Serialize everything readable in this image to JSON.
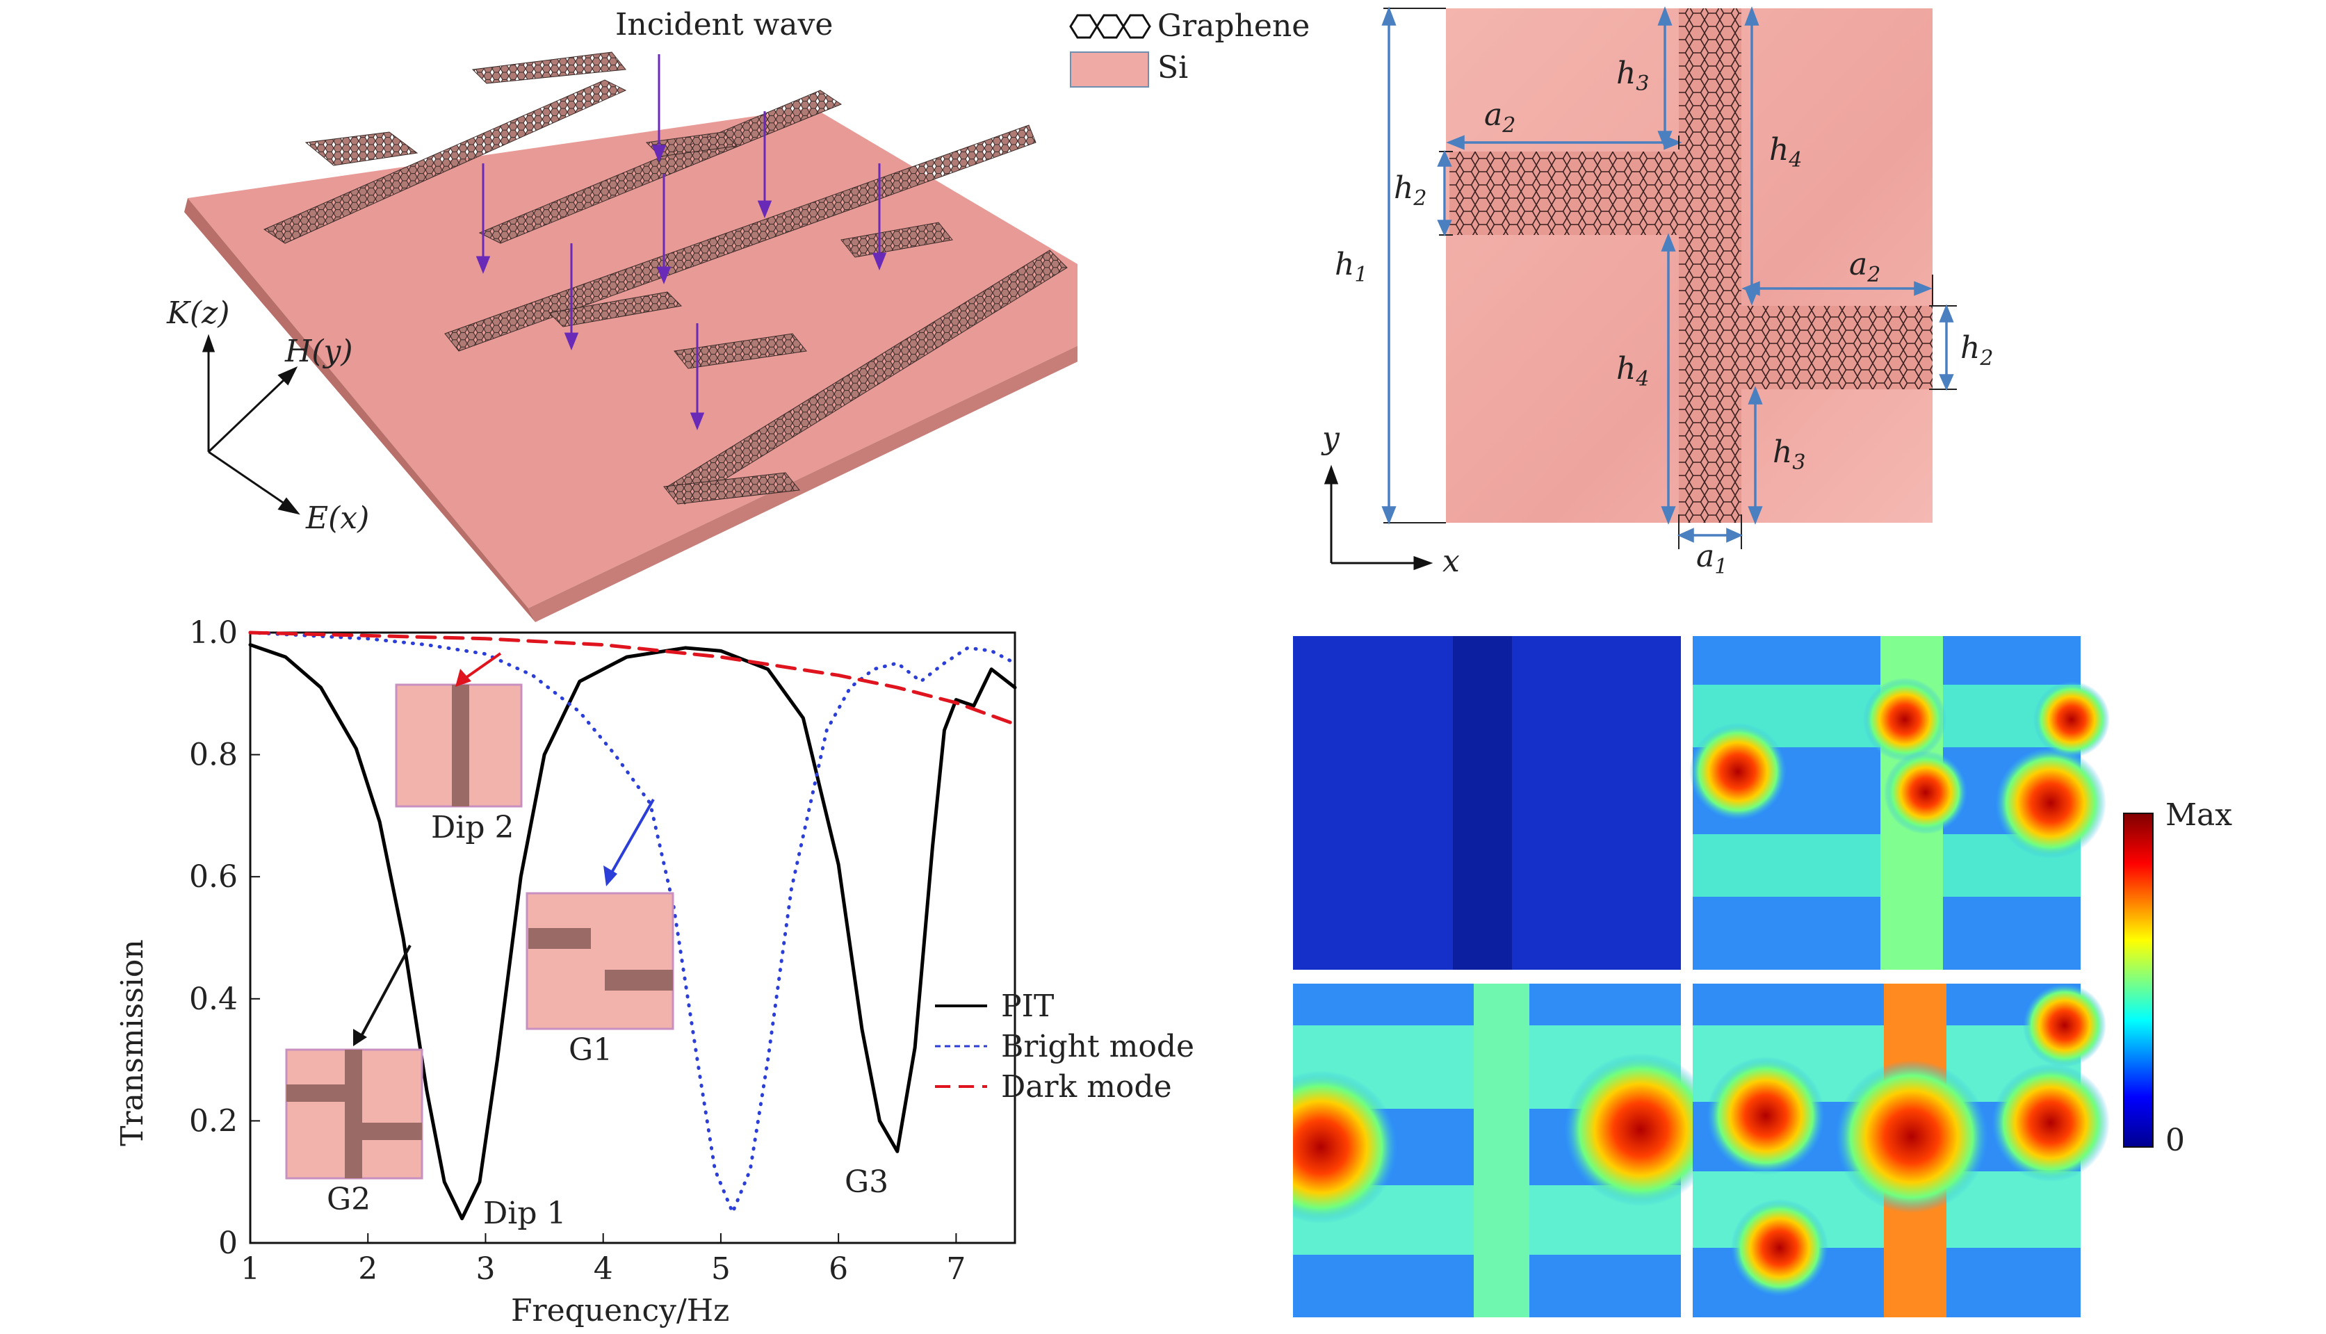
{
  "panel_a": {
    "incident_label": "Incident wave",
    "axis_k": "K(z)",
    "axis_h": "H(y)",
    "axis_e": "E(x)"
  },
  "legend_top": {
    "graphene": "Graphene",
    "si": "Si"
  },
  "panel_b": {
    "h1": "h",
    "h1_sub": "1",
    "h2": "h",
    "h2_sub": "2",
    "h3": "h",
    "h3_sub": "3",
    "h4": "h",
    "h4_sub": "4",
    "a1": "a",
    "a1_sub": "1",
    "a2": "a",
    "a2_sub": "2",
    "axis_x": "x",
    "axis_y": "y"
  },
  "chart_data": {
    "type": "line",
    "xlabel": "Frequency/Hz",
    "ylabel": "Transmission",
    "xlim": [
      1,
      7.5
    ],
    "ylim": [
      0,
      1.0
    ],
    "xticks": [
      "1",
      "2",
      "3",
      "4",
      "5",
      "6",
      "7"
    ],
    "yticks": [
      "0",
      "0.2",
      "0.4",
      "0.6",
      "0.8",
      "1.0"
    ],
    "series": [
      {
        "name": "PIT",
        "color": "#000000",
        "style": "solid",
        "x": [
          1.0,
          1.3,
          1.6,
          1.9,
          2.1,
          2.3,
          2.5,
          2.65,
          2.8,
          2.95,
          3.1,
          3.3,
          3.5,
          3.8,
          4.2,
          4.7,
          5.0,
          5.4,
          5.7,
          6.0,
          6.2,
          6.35,
          6.5,
          6.65,
          6.8,
          6.9,
          7.0,
          7.15,
          7.3,
          7.5
        ],
        "y": [
          0.98,
          0.96,
          0.91,
          0.81,
          0.69,
          0.5,
          0.25,
          0.1,
          0.04,
          0.1,
          0.3,
          0.6,
          0.8,
          0.92,
          0.96,
          0.975,
          0.97,
          0.94,
          0.86,
          0.62,
          0.35,
          0.2,
          0.15,
          0.32,
          0.65,
          0.84,
          0.89,
          0.88,
          0.94,
          0.91
        ]
      },
      {
        "name": "Bright mode",
        "color": "#2b3ed8",
        "style": "dotted",
        "x": [
          1.0,
          1.5,
          2.0,
          2.5,
          3.0,
          3.4,
          3.8,
          4.1,
          4.4,
          4.6,
          4.8,
          4.95,
          5.1,
          5.25,
          5.4,
          5.6,
          5.9,
          6.1,
          6.3,
          6.5,
          6.7,
          6.9,
          7.1,
          7.3,
          7.5
        ],
        "y": [
          1.0,
          0.995,
          0.99,
          0.98,
          0.965,
          0.93,
          0.87,
          0.8,
          0.72,
          0.55,
          0.3,
          0.12,
          0.05,
          0.12,
          0.3,
          0.58,
          0.84,
          0.91,
          0.94,
          0.95,
          0.92,
          0.95,
          0.975,
          0.97,
          0.95
        ]
      },
      {
        "name": "Dark mode",
        "color": "#e0141e",
        "style": "dashed",
        "x": [
          1.0,
          2.0,
          3.0,
          4.0,
          4.5,
          5.0,
          5.5,
          6.0,
          6.5,
          7.0,
          7.5
        ],
        "y": [
          1.0,
          0.995,
          0.99,
          0.98,
          0.97,
          0.96,
          0.945,
          0.93,
          0.91,
          0.885,
          0.85
        ]
      }
    ],
    "annotations": [
      "Dip 1",
      "Dip 2",
      "G1",
      "G2",
      "G3"
    ],
    "legend_position": "right"
  },
  "colorbar": {
    "max_label": "Max",
    "min_label": "0"
  }
}
